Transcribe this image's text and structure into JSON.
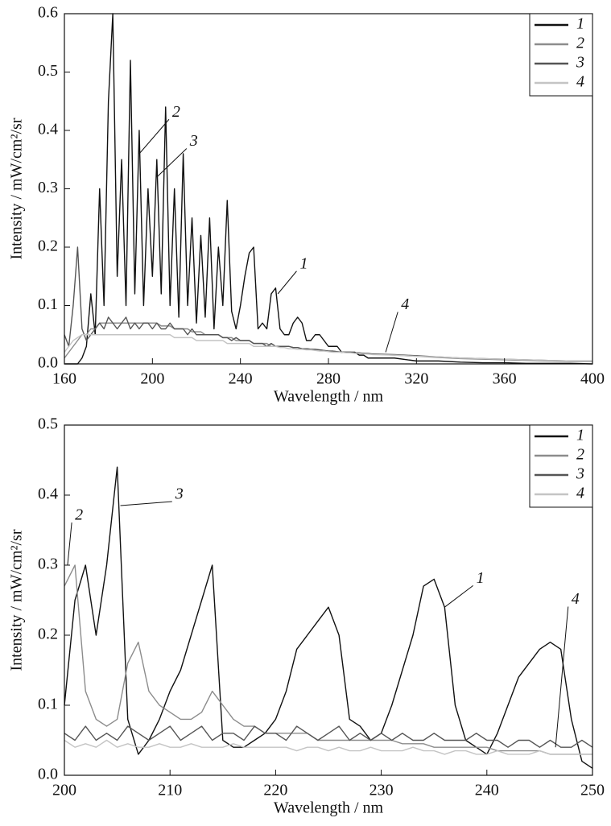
{
  "chart_data": [
    {
      "type": "line",
      "xlabel": "Wavelength / nm",
      "ylabel": "Intensity / mW/cm²/sr",
      "x": [
        160,
        162,
        164,
        166,
        168,
        170,
        172,
        174,
        176,
        178,
        180,
        182,
        184,
        186,
        188,
        190,
        192,
        194,
        196,
        198,
        200,
        202,
        204,
        206,
        208,
        210,
        212,
        214,
        216,
        218,
        220,
        222,
        224,
        226,
        228,
        230,
        232,
        234,
        236,
        238,
        240,
        242,
        244,
        246,
        248,
        250,
        252,
        254,
        256,
        258,
        260,
        262,
        264,
        266,
        268,
        270,
        272,
        274,
        276,
        278,
        280,
        282,
        284,
        286,
        288,
        290,
        292,
        294,
        296,
        298,
        300,
        310,
        320,
        330,
        340,
        350,
        360,
        370,
        380,
        390,
        400
      ],
      "series": [
        {
          "name": "1",
          "color": "#111111",
          "values": [
            0,
            0,
            0,
            0,
            0.01,
            0.03,
            0.12,
            0.05,
            0.3,
            0.1,
            0.45,
            0.6,
            0.15,
            0.35,
            0.1,
            0.52,
            0.12,
            0.4,
            0.1,
            0.3,
            0.15,
            0.35,
            0.12,
            0.44,
            0.1,
            0.3,
            0.08,
            0.36,
            0.1,
            0.25,
            0.07,
            0.22,
            0.08,
            0.25,
            0.06,
            0.2,
            0.1,
            0.28,
            0.09,
            0.06,
            0.1,
            0.15,
            0.19,
            0.2,
            0.06,
            0.07,
            0.06,
            0.12,
            0.13,
            0.06,
            0.05,
            0.05,
            0.07,
            0.08,
            0.07,
            0.04,
            0.04,
            0.05,
            0.05,
            0.04,
            0.03,
            0.03,
            0.03,
            0.02,
            0.02,
            0.02,
            0.02,
            0.015,
            0.015,
            0.01,
            0.01,
            0.01,
            0.005,
            0.005,
            0.003,
            0.002,
            0.002,
            0.001,
            0.001,
            0.001,
            0
          ]
        },
        {
          "name": "2",
          "color": "#8c8c8c",
          "values": [
            0.01,
            0.02,
            0.03,
            0.04,
            0.05,
            0.05,
            0.06,
            0.06,
            0.07,
            0.07,
            0.07,
            0.07,
            0.07,
            0.07,
            0.07,
            0.07,
            0.07,
            0.07,
            0.07,
            0.07,
            0.07,
            0.07,
            0.065,
            0.065,
            0.065,
            0.06,
            0.06,
            0.06,
            0.06,
            0.055,
            0.055,
            0.055,
            0.05,
            0.05,
            0.05,
            0.05,
            0.045,
            0.045,
            0.045,
            0.04,
            0.04,
            0.04,
            0.04,
            0.035,
            0.035,
            0.035,
            0.035,
            0.03,
            0.03,
            0.03,
            0.03,
            0.03,
            0.028,
            0.028,
            0.026,
            0.026,
            0.025,
            0.024,
            0.024,
            0.023,
            0.022,
            0.022,
            0.021,
            0.02,
            0.02,
            0.02,
            0.019,
            0.018,
            0.018,
            0.017,
            0.017,
            0.015,
            0.013,
            0.011,
            0.009,
            0.008,
            0.007,
            0.006,
            0.005,
            0.004,
            0.004
          ]
        },
        {
          "name": "3",
          "color": "#555555",
          "values": [
            0.05,
            0.03,
            0.1,
            0.2,
            0.06,
            0.04,
            0.05,
            0.06,
            0.07,
            0.06,
            0.08,
            0.07,
            0.06,
            0.07,
            0.08,
            0.06,
            0.07,
            0.06,
            0.07,
            0.07,
            0.06,
            0.07,
            0.06,
            0.06,
            0.07,
            0.06,
            0.06,
            0.06,
            0.05,
            0.06,
            0.05,
            0.05,
            0.05,
            0.05,
            0.05,
            0.05,
            0.045,
            0.045,
            0.04,
            0.045,
            0.04,
            0.04,
            0.04,
            0.035,
            0.035,
            0.035,
            0.03,
            0.035,
            0.03,
            0.03,
            0.03,
            0.03,
            0.028,
            0.028,
            0.026,
            0.026,
            0.025,
            0.025,
            0.024,
            0.023,
            0.022,
            0.022,
            0.021,
            0.02,
            0.02,
            0.02,
            0.019,
            0.019,
            0.018,
            0.018,
            0.017,
            0.016,
            0.014,
            0.012,
            0.01,
            0.009,
            0.008,
            0.007,
            0.006,
            0.005,
            0.005
          ]
        },
        {
          "name": "4",
          "color": "#c4c4c4",
          "values": [
            0.02,
            0.03,
            0.04,
            0.045,
            0.05,
            0.05,
            0.05,
            0.05,
            0.05,
            0.05,
            0.05,
            0.05,
            0.05,
            0.05,
            0.05,
            0.05,
            0.05,
            0.05,
            0.05,
            0.05,
            0.05,
            0.05,
            0.05,
            0.05,
            0.05,
            0.045,
            0.045,
            0.045,
            0.045,
            0.045,
            0.04,
            0.04,
            0.04,
            0.04,
            0.04,
            0.04,
            0.04,
            0.035,
            0.035,
            0.035,
            0.035,
            0.035,
            0.035,
            0.03,
            0.03,
            0.03,
            0.03,
            0.03,
            0.03,
            0.028,
            0.028,
            0.026,
            0.026,
            0.025,
            0.025,
            0.024,
            0.024,
            0.023,
            0.022,
            0.022,
            0.021,
            0.02,
            0.02,
            0.02,
            0.019,
            0.019,
            0.018,
            0.018,
            0.017,
            0.017,
            0.016,
            0.015,
            0.013,
            0.012,
            0.01,
            0.009,
            0.008,
            0.007,
            0.006,
            0.005,
            0.005
          ]
        }
      ],
      "xlim": [
        160,
        400
      ],
      "xticks": [
        160,
        200,
        240,
        280,
        320,
        360,
        400
      ],
      "ylim": [
        0,
        0.6
      ],
      "yticks": [
        {
          "value": 0,
          "label": "0.0"
        },
        0.1,
        0.2,
        0.3,
        0.4,
        0.5,
        0.6
      ],
      "legend": "upper right",
      "annotations": [
        {
          "text": "2",
          "x": 209,
          "y": 0.43,
          "arrow_to": [
            194,
            0.36
          ]
        },
        {
          "text": "3",
          "x": 217,
          "y": 0.38,
          "arrow_to": [
            202,
            0.32
          ]
        },
        {
          "text": "1",
          "x": 267,
          "y": 0.17,
          "arrow_to": [
            257,
            0.12
          ]
        },
        {
          "text": "4",
          "x": 313,
          "y": 0.1,
          "arrow_to": [
            306,
            0.02
          ]
        }
      ]
    },
    {
      "type": "line",
      "xlabel": "Wavelength / nm",
      "ylabel": "Intensity / mW/cm²/sr",
      "x": [
        200,
        201,
        202,
        203,
        204,
        205,
        206,
        207,
        208,
        209,
        210,
        211,
        212,
        213,
        214,
        215,
        216,
        217,
        218,
        219,
        220,
        221,
        222,
        223,
        224,
        225,
        226,
        227,
        228,
        229,
        230,
        231,
        232,
        233,
        234,
        235,
        236,
        237,
        238,
        239,
        240,
        241,
        242,
        243,
        244,
        245,
        246,
        247,
        248,
        249,
        250
      ],
      "series": [
        {
          "name": "1",
          "color": "#111111",
          "values": [
            0.1,
            0.25,
            0.3,
            0.2,
            0.3,
            0.44,
            0.08,
            0.03,
            0.05,
            0.08,
            0.12,
            0.15,
            0.2,
            0.25,
            0.3,
            0.05,
            0.04,
            0.04,
            0.05,
            0.06,
            0.08,
            0.12,
            0.18,
            0.2,
            0.22,
            0.24,
            0.2,
            0.08,
            0.07,
            0.05,
            0.06,
            0.1,
            0.15,
            0.2,
            0.27,
            0.28,
            0.24,
            0.1,
            0.05,
            0.04,
            0.03,
            0.06,
            0.1,
            0.14,
            0.16,
            0.18,
            0.19,
            0.18,
            0.08,
            0.02,
            0.01
          ]
        },
        {
          "name": "2",
          "color": "#8c8c8c",
          "values": [
            0.27,
            0.3,
            0.12,
            0.08,
            0.07,
            0.08,
            0.16,
            0.19,
            0.12,
            0.1,
            0.09,
            0.08,
            0.08,
            0.09,
            0.12,
            0.1,
            0.08,
            0.07,
            0.07,
            0.06,
            0.06,
            0.06,
            0.06,
            0.06,
            0.05,
            0.05,
            0.05,
            0.05,
            0.05,
            0.05,
            0.05,
            0.05,
            0.045,
            0.045,
            0.045,
            0.04,
            0.04,
            0.04,
            0.04,
            0.04,
            0.04,
            0.035,
            0.035,
            0.035,
            0.035,
            0.035,
            0.03,
            0.03,
            0.03,
            0.03,
            0.03
          ]
        },
        {
          "name": "3",
          "color": "#555555",
          "values": [
            0.06,
            0.05,
            0.07,
            0.05,
            0.06,
            0.05,
            0.07,
            0.06,
            0.05,
            0.06,
            0.07,
            0.05,
            0.06,
            0.07,
            0.05,
            0.06,
            0.06,
            0.05,
            0.07,
            0.06,
            0.06,
            0.05,
            0.07,
            0.06,
            0.05,
            0.06,
            0.07,
            0.05,
            0.06,
            0.05,
            0.06,
            0.05,
            0.06,
            0.05,
            0.05,
            0.06,
            0.05,
            0.05,
            0.05,
            0.06,
            0.05,
            0.05,
            0.04,
            0.05,
            0.05,
            0.04,
            0.05,
            0.04,
            0.04,
            0.05,
            0.04
          ]
        },
        {
          "name": "4",
          "color": "#c4c4c4",
          "values": [
            0.05,
            0.04,
            0.045,
            0.04,
            0.05,
            0.04,
            0.045,
            0.04,
            0.04,
            0.045,
            0.04,
            0.04,
            0.045,
            0.04,
            0.04,
            0.04,
            0.045,
            0.04,
            0.04,
            0.04,
            0.04,
            0.04,
            0.035,
            0.04,
            0.04,
            0.035,
            0.04,
            0.035,
            0.035,
            0.04,
            0.035,
            0.035,
            0.035,
            0.04,
            0.035,
            0.035,
            0.03,
            0.035,
            0.035,
            0.03,
            0.03,
            0.035,
            0.03,
            0.03,
            0.03,
            0.035,
            0.03,
            0.03,
            0.03,
            0.03,
            0.03
          ]
        }
      ],
      "xlim": [
        200,
        250
      ],
      "xticks": [
        200,
        210,
        220,
        230,
        240,
        250
      ],
      "ylim": [
        0,
        0.5
      ],
      "yticks": [
        {
          "value": 0,
          "label": "0.0"
        },
        0.1,
        0.2,
        0.3,
        0.4,
        0.5
      ],
      "legend": "upper right",
      "annotations": [
        {
          "text": "2",
          "x": 201,
          "y": 0.37,
          "arrow_to": [
            200.3,
            0.3
          ]
        },
        {
          "text": "3",
          "x": 210.5,
          "y": 0.4,
          "arrow_to": [
            205.3,
            0.385
          ]
        },
        {
          "text": "1",
          "x": 239,
          "y": 0.28,
          "arrow_to": [
            236,
            0.24
          ]
        },
        {
          "text": "4",
          "x": 248,
          "y": 0.25,
          "arrow_to": [
            246.5,
            0.04
          ]
        }
      ]
    }
  ]
}
